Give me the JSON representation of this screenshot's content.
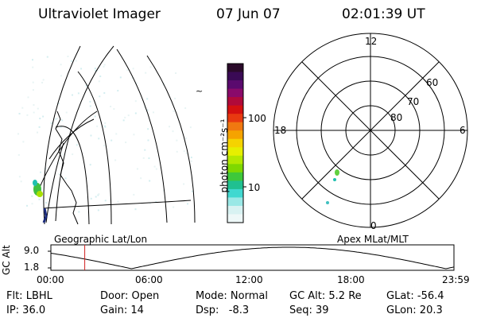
{
  "header": {
    "title": "Ultraviolet Imager",
    "date": "07 Jun 07",
    "time": "02:01:39 UT"
  },
  "colorbar": {
    "label": "photon cm⁻²s⁻¹",
    "ticks": [
      "100",
      "10"
    ],
    "colors": [
      "#2a0a2a",
      "#3a0a55",
      "#5a0a6e",
      "#8a0a6a",
      "#b00a3a",
      "#d41010",
      "#e83a10",
      "#f07810",
      "#f5a300",
      "#f5d300",
      "#e6ef00",
      "#b4e800",
      "#7fd800",
      "#3ec83a",
      "#20c090",
      "#40d8d0",
      "#9ae8e6",
      "#d8f2f2",
      "#eef8f8"
    ]
  },
  "left_panel": {
    "label": "Geographic Lat/Lon"
  },
  "right_panel": {
    "label": "Apex MLat/MLT",
    "mlt_labels": {
      "top": "12",
      "left": "18",
      "right": "6",
      "bottom": "0"
    },
    "lat_labels": [
      "60",
      "70",
      "80"
    ]
  },
  "altitude_plot": {
    "ylabel": "GC Alt",
    "yticks": [
      "9.0",
      "1.8"
    ],
    "xticks": [
      "00:00",
      "06:00",
      "12:00",
      "18:00",
      "23:59"
    ],
    "current_time_fraction": 0.084,
    "marker_color": "#d02020"
  },
  "status": {
    "flt": "Flt: LBHL",
    "door": "Door: Open",
    "mode": "Mode: Normal",
    "gc_alt": "GC Alt: 5.2 Re",
    "glat": "GLat: -56.4",
    "ip": "IP: 36.0",
    "gain": "Gain: 14",
    "dsp": "Dsp:   -8.3",
    "seq": "Seq: 39",
    "glon": "GLon: 20.3"
  }
}
